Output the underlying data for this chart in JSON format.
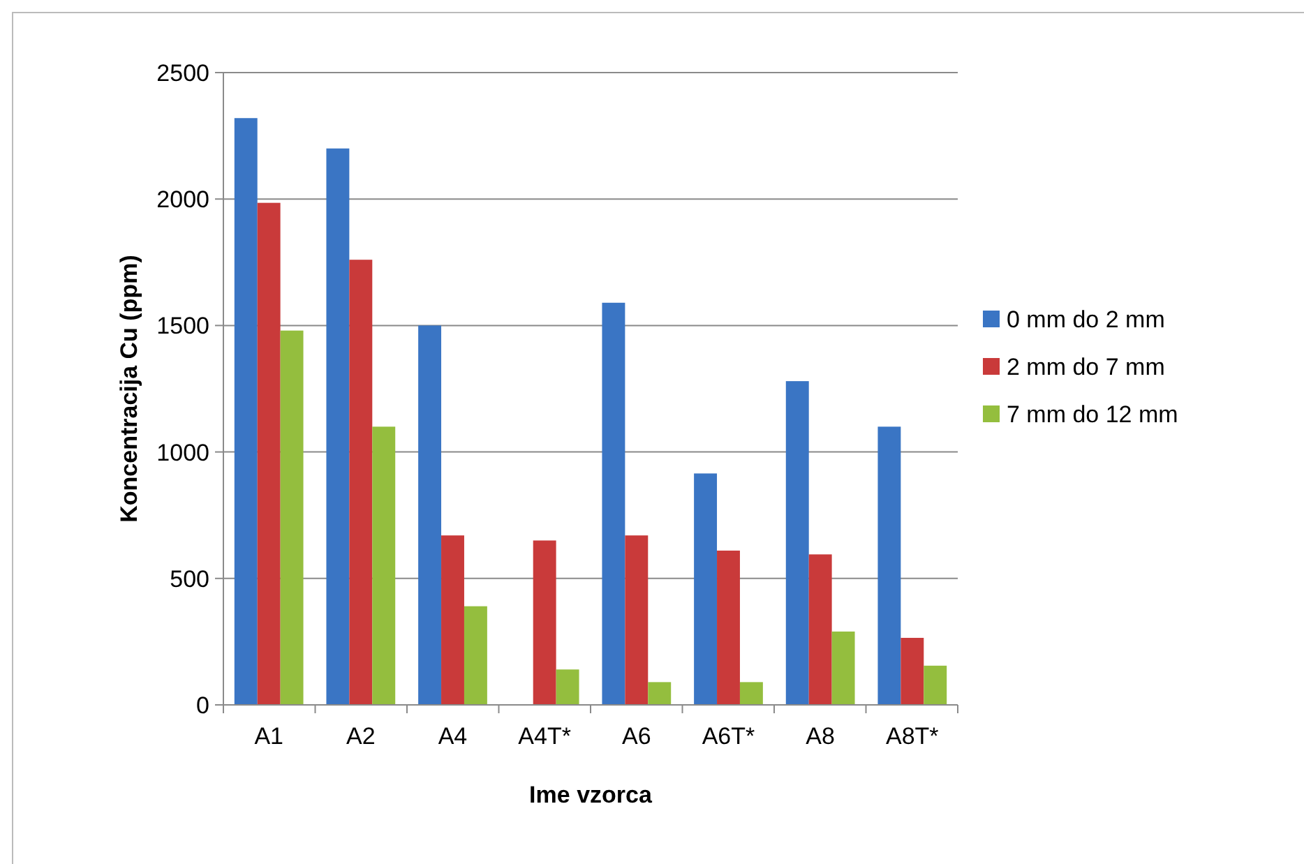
{
  "chart_data": {
    "type": "bar",
    "xlabel": "Ime vzorca",
    "ylabel": "Koncentracija Cu (ppm)",
    "categories": [
      "A1",
      "A2",
      "A4",
      "A4T*",
      "A6",
      "A6T*",
      "A8",
      "A8T*"
    ],
    "series": [
      {
        "name": "0 mm do 2 mm",
        "color": "#3a75c4",
        "values": [
          2320,
          2200,
          1500,
          null,
          1590,
          915,
          1280,
          1100
        ]
      },
      {
        "name": "2 mm do 7 mm",
        "color": "#c93a3a",
        "values": [
          1985,
          1760,
          670,
          650,
          670,
          610,
          595,
          265
        ]
      },
      {
        "name": "7 mm do 12 mm",
        "color": "#94be3e",
        "values": [
          1480,
          1100,
          390,
          140,
          90,
          90,
          290,
          155
        ]
      }
    ],
    "ylim": [
      0,
      2500
    ],
    "yticks": [
      0,
      500,
      1000,
      1500,
      2000,
      2500
    ],
    "grid": "y",
    "legend": "right"
  }
}
